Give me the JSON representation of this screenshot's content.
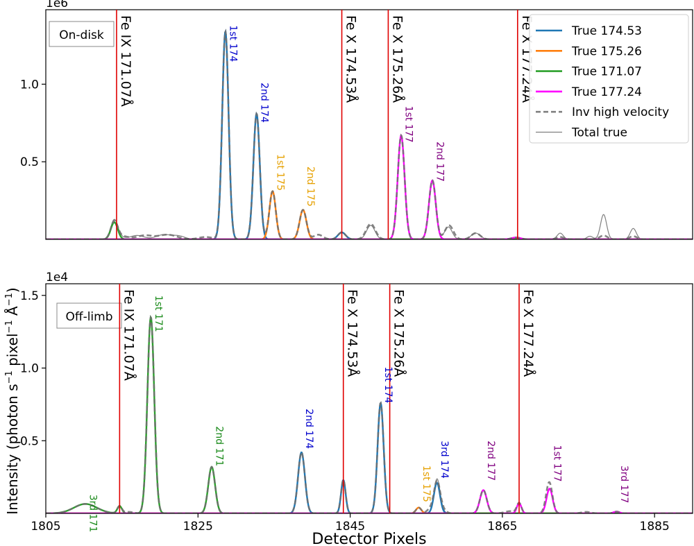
{
  "figure": {
    "xlabel": "Detector Pixels",
    "ylabel_main": "Intensity (photon s",
    "ylabel_sup1": "−1",
    "ylabel_mid": " pixel",
    "ylabel_sup2": "−1",
    "ylabel_mid2": " Å",
    "ylabel_sup3": "−1",
    "ylabel_end": ")"
  },
  "legend": {
    "items": [
      {
        "label": "True 174.53",
        "color": "#1f77b4",
        "style": "solid"
      },
      {
        "label": "True 175.26",
        "color": "#ff7f0e",
        "style": "solid"
      },
      {
        "label": "True 171.07",
        "color": "#2ca02c",
        "style": "solid"
      },
      {
        "label": "True 177.24",
        "color": "#ff00ff",
        "style": "solid"
      },
      {
        "label": "Inv high velocity",
        "color": "#808080",
        "style": "dashed"
      },
      {
        "label": "Total true",
        "color": "#808080",
        "style": "thin"
      }
    ]
  },
  "colors": {
    "blue": "#0000cc",
    "orange": "#e6a000",
    "green": "#1a8a1a",
    "purple": "#800080",
    "ref_line": "#e00000"
  },
  "chart_data": [
    {
      "type": "line",
      "panel_label": "On-disk",
      "offset_text": "1e6",
      "xlim": [
        1805,
        1890
      ],
      "ylim": [
        0,
        1.48
      ],
      "yticks": [
        0.5,
        1.0
      ],
      "ytick_labels": [
        "0.5",
        "1.0"
      ],
      "ref_lines": [
        {
          "x": 1814.3,
          "label": "Fe IX 171.07Å"
        },
        {
          "x": 1843.9,
          "label": "Fe X 174.53Å"
        },
        {
          "x": 1850.0,
          "label": "Fe X 175.26Å"
        },
        {
          "x": 1867.0,
          "label": "Fe X 177.24Å"
        }
      ],
      "series": [
        {
          "name": "True 174.53",
          "color": "#1f77b4",
          "peaks": [
            [
              1828.6,
              1.34,
              0.42
            ],
            [
              1832.7,
              0.81,
              0.42
            ],
            [
              1843.9,
              0.045,
              0.5
            ]
          ]
        },
        {
          "name": "True 175.26",
          "color": "#ff7f0e",
          "peaks": [
            [
              1834.8,
              0.31,
              0.42
            ],
            [
              1838.8,
              0.19,
              0.45
            ]
          ]
        },
        {
          "name": "True 171.07",
          "color": "#2ca02c",
          "peaks": [
            [
              1814.0,
              0.11,
              0.45
            ]
          ]
        },
        {
          "name": "True 177.24",
          "color": "#ff00ff",
          "peaks": [
            [
              1851.7,
              0.67,
              0.45
            ],
            [
              1855.8,
              0.38,
              0.45
            ],
            [
              1866.8,
              0.012,
              0.6
            ]
          ]
        }
      ],
      "extra_total": [
        [
          1814.3,
          0.02,
          0.8
        ],
        [
          1817.0,
          0.025,
          0.9
        ],
        [
          1820.5,
          0.03,
          1.0
        ],
        [
          1822.5,
          0.02,
          0.8
        ],
        [
          1847.7,
          0.09,
          0.55
        ],
        [
          1857.9,
          0.08,
          0.5
        ],
        [
          1861.5,
          0.04,
          0.6
        ],
        [
          1872.6,
          0.04,
          0.4
        ],
        [
          1876.5,
          0.02,
          0.4
        ],
        [
          1878.3,
          0.16,
          0.4
        ],
        [
          1882.2,
          0.07,
          0.4
        ]
      ],
      "extra_inv": [
        [
          1815.0,
          0.02,
          0.9
        ],
        [
          1818.0,
          0.025,
          1.0
        ],
        [
          1821.0,
          0.03,
          1.2
        ],
        [
          1826.0,
          0.015,
          0.9
        ],
        [
          1840.8,
          0.03,
          0.6
        ],
        [
          1847.7,
          0.1,
          0.6
        ],
        [
          1858.0,
          0.09,
          0.55
        ],
        [
          1861.5,
          0.04,
          0.6
        ],
        [
          1872.6,
          0.015,
          0.5
        ],
        [
          1878.3,
          0.025,
          0.5
        ],
        [
          1882.2,
          0.02,
          0.5
        ]
      ],
      "annotations": [
        {
          "x": 1829.2,
          "y": 1.38,
          "text": "1st 174",
          "color": "#0000cc"
        },
        {
          "x": 1833.3,
          "y": 1.01,
          "text": "2nd 174",
          "color": "#0000cc"
        },
        {
          "x": 1835.4,
          "y": 0.55,
          "text": "1st 175",
          "color": "#e6a000"
        },
        {
          "x": 1839.4,
          "y": 0.47,
          "text": "2nd 175",
          "color": "#e6a000"
        },
        {
          "x": 1852.3,
          "y": 0.86,
          "text": "1st 177",
          "color": "#800080"
        },
        {
          "x": 1856.4,
          "y": 0.63,
          "text": "2nd 177",
          "color": "#800080"
        }
      ]
    },
    {
      "type": "line",
      "panel_label": "Off-limb",
      "offset_text": "1e4",
      "xlim": [
        1805,
        1890
      ],
      "ylim": [
        0,
        1.58
      ],
      "yticks": [
        0.5,
        1.0,
        1.5
      ],
      "ytick_labels": [
        "0.5",
        "1.0",
        "1.5"
      ],
      "xticks": [
        1805,
        1825,
        1845,
        1865,
        1885
      ],
      "ref_lines": [
        {
          "x": 1814.7,
          "label": "Fe IX 171.07Å"
        },
        {
          "x": 1844.1,
          "label": "Fe X 174.53Å"
        },
        {
          "x": 1850.2,
          "label": "Fe X 175.26Å"
        },
        {
          "x": 1867.2,
          "label": "Fe X 177.24Å"
        }
      ],
      "series": [
        {
          "name": "True 174.53",
          "color": "#1f77b4",
          "peaks": [
            [
              1838.6,
              0.42,
              0.45
            ],
            [
              1844.1,
              0.23,
              0.3
            ],
            [
              1849.0,
              0.76,
              0.4
            ],
            [
              1856.4,
              0.21,
              0.4
            ]
          ]
        },
        {
          "name": "True 175.26",
          "color": "#ff7f0e",
          "peaks": [
            [
              1854.0,
              0.04,
              0.35
            ]
          ]
        },
        {
          "name": "True 171.07",
          "color": "#2ca02c",
          "peaks": [
            [
              1810.2,
              0.065,
              1.5
            ],
            [
              1814.7,
              0.05,
              0.3
            ],
            [
              1818.8,
              1.35,
              0.45
            ],
            [
              1826.8,
              0.32,
              0.45
            ]
          ]
        },
        {
          "name": "True 177.24",
          "color": "#ff00ff",
          "peaks": [
            [
              1862.5,
              0.16,
              0.45
            ],
            [
              1867.2,
              0.07,
              0.3
            ],
            [
              1871.2,
              0.17,
              0.4
            ],
            [
              1880.0,
              0.012,
              0.4
            ]
          ]
        }
      ],
      "extra_total": [
        [
          1856.6,
          0.03,
          0.5
        ]
      ],
      "extra_inv": [
        [
          1815.9,
          0.01,
          0.6
        ],
        [
          1855.5,
          0.03,
          0.4
        ],
        [
          1857.0,
          0.03,
          0.5
        ],
        [
          1866.0,
          0.015,
          0.7
        ],
        [
          1871.0,
          0.05,
          0.4
        ],
        [
          1876.0,
          0.01,
          0.6
        ]
      ],
      "annotations": [
        {
          "x": 1810.8,
          "y": 0.13,
          "text": "3rd 171",
          "color": "#1a8a1a"
        },
        {
          "x": 1819.4,
          "y": 1.5,
          "text": "1st 171",
          "color": "#1a8a1a"
        },
        {
          "x": 1827.4,
          "y": 0.6,
          "text": "2nd 171",
          "color": "#1a8a1a"
        },
        {
          "x": 1839.2,
          "y": 0.72,
          "text": "2nd 174",
          "color": "#0000cc"
        },
        {
          "x": 1849.6,
          "y": 1.01,
          "text": "1st 174",
          "color": "#0000cc"
        },
        {
          "x": 1857.0,
          "y": 0.5,
          "text": "3rd 174",
          "color": "#0000cc"
        },
        {
          "x": 1854.6,
          "y": 0.33,
          "text": "1st 175",
          "color": "#e6a000"
        },
        {
          "x": 1863.1,
          "y": 0.5,
          "text": "2nd 177",
          "color": "#800080"
        },
        {
          "x": 1871.8,
          "y": 0.47,
          "text": "1st 177",
          "color": "#800080"
        },
        {
          "x": 1880.6,
          "y": 0.33,
          "text": "3rd 177",
          "color": "#800080"
        }
      ]
    }
  ]
}
